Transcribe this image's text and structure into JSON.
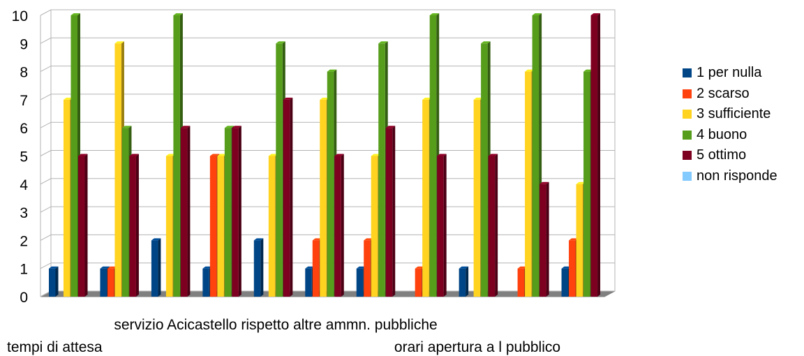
{
  "chart_data": {
    "type": "bar",
    "title": "",
    "xlabel": "",
    "ylabel": "",
    "ylim": [
      0,
      10
    ],
    "yticks": [
      "0",
      "1",
      "2",
      "3",
      "4",
      "5",
      "6",
      "7",
      "8",
      "9",
      "10"
    ],
    "groups": 11,
    "category_labels": {
      "row1": "servizio Acicastello rispetto altre ammn. pubbliche",
      "row2_left": "tempi di attesa",
      "row2_right": "orari apertura a l pubblico"
    },
    "grid": true,
    "legend_position": "right",
    "series": [
      {
        "name": "1 per nulla",
        "color": "#004586",
        "values": [
          1,
          1,
          2,
          1,
          2,
          1,
          1,
          0,
          1,
          0,
          1
        ]
      },
      {
        "name": "2 scarso",
        "color": "#ff420e",
        "values": [
          0,
          1,
          0,
          5,
          0,
          2,
          2,
          1,
          0,
          1,
          2
        ]
      },
      {
        "name": "3 sufficiente",
        "color": "#ffd320",
        "values": [
          7,
          9,
          5,
          5,
          5,
          7,
          5,
          7,
          7,
          8,
          4
        ]
      },
      {
        "name": "4 buono",
        "color": "#579d1c",
        "values": [
          10,
          6,
          10,
          6,
          9,
          8,
          9,
          10,
          9,
          10,
          8
        ]
      },
      {
        "name": "5 ottimo",
        "color": "#7e0021",
        "values": [
          5,
          5,
          6,
          6,
          7,
          5,
          6,
          5,
          5,
          4,
          10
        ]
      },
      {
        "name": "non risponde",
        "color": "#83caff",
        "values": [
          0,
          0,
          0,
          0,
          0,
          0,
          0,
          0,
          0,
          0,
          0
        ]
      }
    ]
  }
}
